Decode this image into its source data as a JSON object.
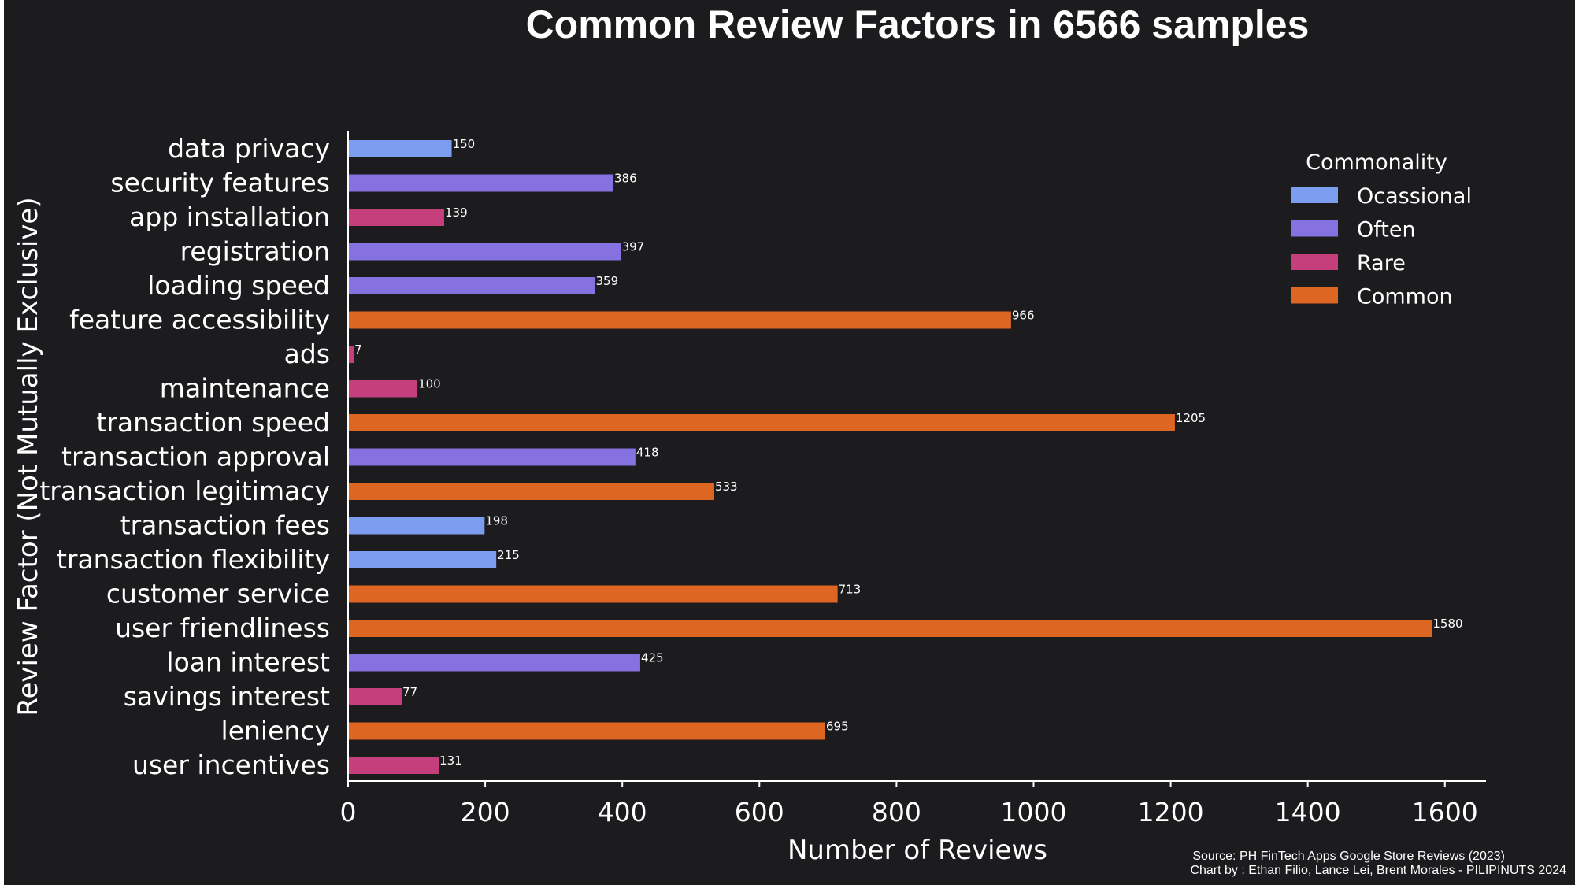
{
  "chart_data": {
    "type": "bar",
    "orientation": "horizontal",
    "title": "Common Review Factors in 6566 samples",
    "xlabel": "Number of Reviews",
    "ylabel": "Review Factor (Not Mutually Exclusive)",
    "xlim": [
      0,
      1660
    ],
    "xticks": [
      0,
      200,
      400,
      600,
      800,
      1000,
      1200,
      1400,
      1600
    ],
    "grid": false,
    "legend": {
      "title": "Commonality",
      "position": "top-right",
      "entries": [
        {
          "name": "Ocassional",
          "color": "#7b9cef"
        },
        {
          "name": "Often",
          "color": "#8572e0"
        },
        {
          "name": "Rare",
          "color": "#c53f7c"
        },
        {
          "name": "Common",
          "color": "#dd6622"
        }
      ]
    },
    "categories": [
      "data privacy",
      "security features",
      "app installation",
      "registration",
      "loading speed",
      "feature accessibility",
      "ads",
      "maintenance",
      "transaction speed",
      "transaction approval",
      "transaction legitimacy",
      "transaction fees",
      "transaction flexibility",
      "customer service",
      "user friendliness",
      "loan interest",
      "savings interest",
      "leniency",
      "user incentives"
    ],
    "values": [
      150,
      386,
      139,
      397,
      359,
      966,
      7,
      100,
      1205,
      418,
      533,
      198,
      215,
      713,
      1580,
      425,
      77,
      695,
      131
    ],
    "value_labels": [
      "150",
      "386",
      "139",
      "397",
      "359",
      "966",
      "7",
      "100",
      "1205",
      "418",
      "533",
      "198",
      "215",
      "713",
      "1580",
      "425",
      "77",
      "695",
      "131"
    ],
    "commonality": [
      "Ocassional",
      "Often",
      "Rare",
      "Often",
      "Often",
      "Common",
      "Rare",
      "Rare",
      "Common",
      "Often",
      "Common",
      "Ocassional",
      "Ocassional",
      "Common",
      "Common",
      "Often",
      "Rare",
      "Common",
      "Rare"
    ]
  },
  "colors": {
    "background": "#1c1b1e",
    "text": "#ffffff",
    "axis": "#ffffff"
  },
  "source_line": "Source: PH FinTech Apps Google Store Reviews (2023)",
  "credit_line": "Chart by : Ethan Filio, Lance Lei, Brent Morales - PILIPINUTS 2024"
}
